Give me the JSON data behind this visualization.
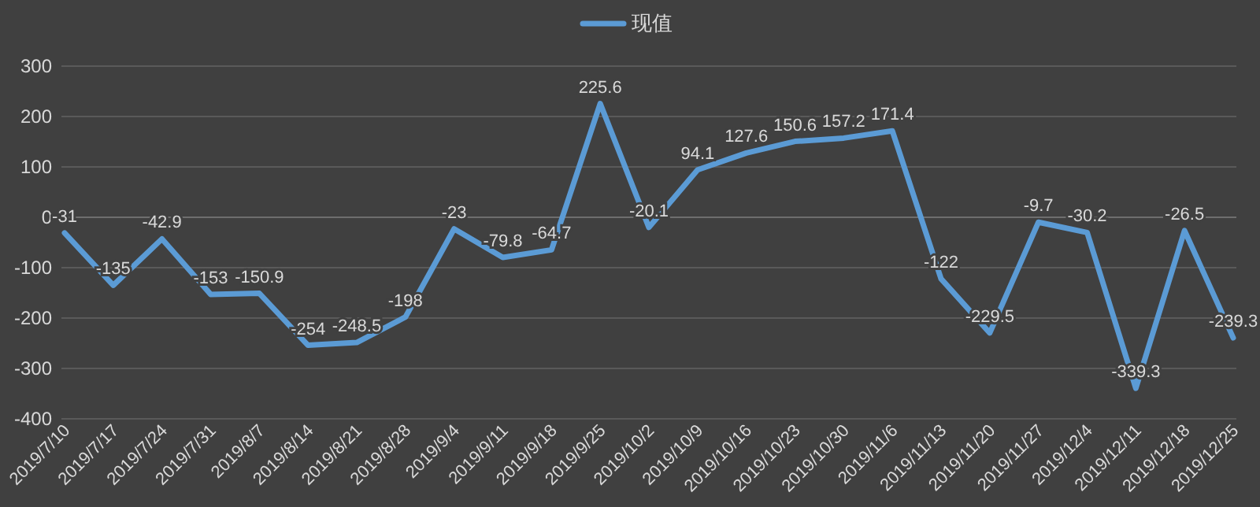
{
  "chart_data": {
    "type": "line",
    "categories": [
      "2019/7/10",
      "2019/7/17",
      "2019/7/24",
      "2019/7/31",
      "2019/8/7",
      "2019/8/14",
      "2019/8/21",
      "2019/8/28",
      "2019/9/4",
      "2019/9/11",
      "2019/9/18",
      "2019/9/25",
      "2019/10/2",
      "2019/10/9",
      "2019/10/16",
      "2019/10/23",
      "2019/10/30",
      "2019/11/6",
      "2019/11/13",
      "2019/11/20",
      "2019/11/27",
      "2019/12/4",
      "2019/12/11",
      "2019/12/18",
      "2019/12/25"
    ],
    "series": [
      {
        "name": "现值",
        "color": "#5b9bd5",
        "values": [
          -31,
          -135,
          -42.9,
          -153,
          -150.9,
          -254,
          -248.5,
          -198,
          -23,
          -79.8,
          -64.7,
          225.6,
          -20.1,
          94.1,
          127.6,
          150.6,
          157.2,
          171.4,
          -122,
          -229.5,
          -9.7,
          -30.2,
          -339.3,
          -26.5,
          -239.3
        ]
      }
    ],
    "ylim": [
      -400,
      300
    ],
    "yticks": [
      -400,
      -300,
      -200,
      -100,
      0,
      100,
      200,
      300
    ],
    "grid": "y",
    "legend": "top",
    "data_labels": true
  }
}
